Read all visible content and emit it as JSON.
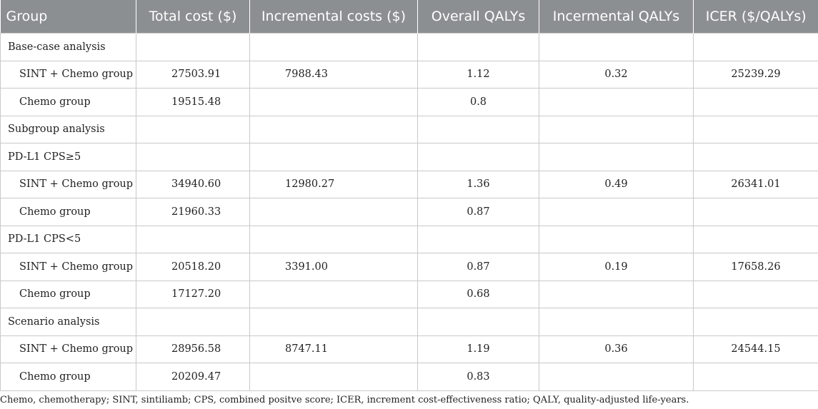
{
  "table": {
    "headers": [
      "Group",
      "Total cost ($)",
      "Incremental costs ($)",
      "Overall QALYs",
      "Incermental QALYs",
      "ICER ($/QALYs)"
    ],
    "rows": [
      {
        "group": "Base-case analysis",
        "indent": false,
        "total_cost": "",
        "incremental_costs": "",
        "overall_qalys": "",
        "incremental_qalys": "",
        "icer": ""
      },
      {
        "group": "SINT + Chemo group",
        "indent": true,
        "total_cost": "27503.91",
        "incremental_costs": "7988.43",
        "overall_qalys": "1.12",
        "incremental_qalys": "0.32",
        "icer": "25239.29"
      },
      {
        "group": "Chemo group",
        "indent": true,
        "total_cost": "19515.48",
        "incremental_costs": "",
        "overall_qalys": "0.8",
        "incremental_qalys": "",
        "icer": ""
      },
      {
        "group": "Subgroup analysis",
        "indent": false,
        "total_cost": "",
        "incremental_costs": "",
        "overall_qalys": "",
        "incremental_qalys": "",
        "icer": ""
      },
      {
        "group": "PD-L1 CPS≥5",
        "indent": false,
        "total_cost": "",
        "incremental_costs": "",
        "overall_qalys": "",
        "incremental_qalys": "",
        "icer": ""
      },
      {
        "group": "SINT + Chemo group",
        "indent": true,
        "total_cost": "34940.60",
        "incremental_costs": "12980.27",
        "overall_qalys": "1.36",
        "incremental_qalys": "0.49",
        "icer": "26341.01"
      },
      {
        "group": "Chemo group",
        "indent": true,
        "total_cost": "21960.33",
        "incremental_costs": "",
        "overall_qalys": "0.87",
        "incremental_qalys": "",
        "icer": ""
      },
      {
        "group": "PD-L1 CPS<5",
        "indent": false,
        "total_cost": "",
        "incremental_costs": "",
        "overall_qalys": "",
        "incremental_qalys": "",
        "icer": ""
      },
      {
        "group": "SINT + Chemo group",
        "indent": true,
        "total_cost": "20518.20",
        "incremental_costs": "3391.00",
        "overall_qalys": "0.87",
        "incremental_qalys": "0.19",
        "icer": "17658.26"
      },
      {
        "group": "Chemo group",
        "indent": true,
        "total_cost": "17127.20",
        "incremental_costs": "",
        "overall_qalys": "0.68",
        "incremental_qalys": "",
        "icer": ""
      },
      {
        "group": "Scenario analysis",
        "indent": false,
        "total_cost": "",
        "incremental_costs": "",
        "overall_qalys": "",
        "incremental_qalys": "",
        "icer": ""
      },
      {
        "group": "SINT + Chemo group",
        "indent": true,
        "total_cost": "28956.58",
        "incremental_costs": "8747.11",
        "overall_qalys": "1.19",
        "incremental_qalys": "0.36",
        "icer": "24544.15"
      },
      {
        "group": "Chemo group",
        "indent": true,
        "total_cost": "20209.47",
        "incremental_costs": "",
        "overall_qalys": "0.83",
        "incremental_qalys": "",
        "icer": ""
      }
    ]
  },
  "footnote": "Chemo, chemotherapy; SINT, sintiliamb; CPS, combined positve score; ICER, increment cost-effectiveness ratio; QALY, quality-adjusted life-years.",
  "colors": {
    "header_bg": "#8c8f92",
    "header_text": "#ffffff",
    "grid": "#c9c9c9"
  }
}
